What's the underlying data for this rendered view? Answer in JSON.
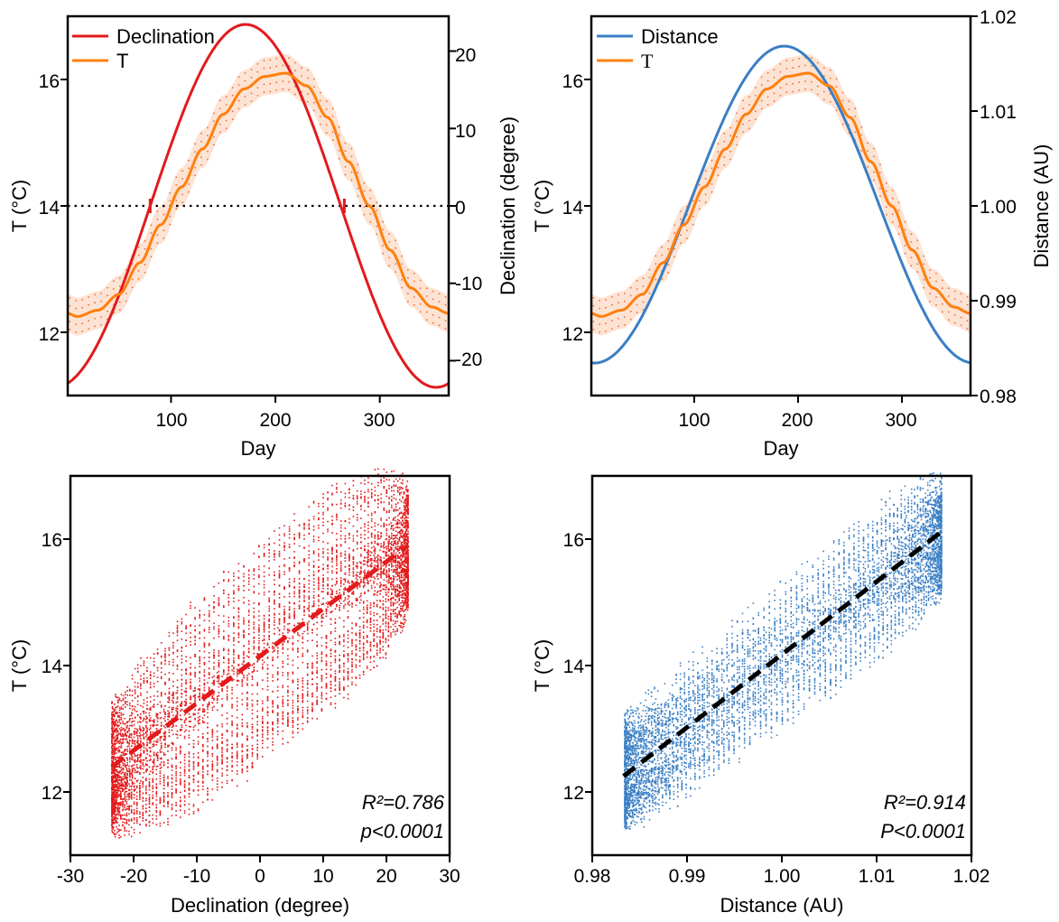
{
  "figure": {
    "panels": [
      {
        "id": "tl",
        "xlabel": "Day",
        "ylabel_left": "T (°C)",
        "ylabel_right": "Declination (degree)",
        "x_ticks": [
          "100",
          "200",
          "300"
        ],
        "y_ticks_left": [
          "12",
          "14",
          "16"
        ],
        "y_ticks_right": [
          "20",
          "10",
          "0",
          "-10",
          "-20"
        ],
        "legend": [
          "Declination",
          "T"
        ]
      },
      {
        "id": "tr",
        "xlabel": "Day",
        "ylabel_left": "T (°C)",
        "ylabel_right": "Distance (AU)",
        "x_ticks": [
          "100",
          "200",
          "300"
        ],
        "y_ticks_left": [
          "12",
          "14",
          "16"
        ],
        "y_ticks_right": [
          "1.02",
          "1.01",
          "1.00",
          "0.99",
          "0.98"
        ],
        "legend": [
          "Distance",
          "T"
        ]
      },
      {
        "id": "bl",
        "xlabel": "Declination (degree)",
        "ylabel_left": "T (°C)",
        "x_ticks": [
          "-30",
          "-20",
          "-10",
          "0",
          "10",
          "20",
          "30"
        ],
        "y_ticks_left": [
          "12",
          "14",
          "16"
        ],
        "annot_r2": "R²=0.786",
        "annot_p": "p<0.0001"
      },
      {
        "id": "br",
        "xlabel": "Distance (AU)",
        "ylabel_left": "T (°C)",
        "x_ticks": [
          "0.98",
          "0.99",
          "1.00",
          "1.01",
          "1.02"
        ],
        "y_ticks_left": [
          "12",
          "14",
          "16"
        ],
        "annot_r2": "R²=0.914",
        "annot_p": "P<0.0001"
      }
    ]
  },
  "colors": {
    "declination": "#e31a1c",
    "temperature": "#ff7f0e",
    "distance": "#3a7fc4",
    "fit_distance": "#000000"
  },
  "chart_data": [
    {
      "type": "line",
      "xlabel": "Day",
      "ylabel": "T (°C)",
      "y2label": "Declination (degree)",
      "xlim": [
        1,
        366
      ],
      "ylim": [
        11,
        17
      ],
      "y2lim": [
        -24.5,
        24.5
      ],
      "series": [
        {
          "name": "Declination",
          "axis": "right",
          "x": [
            1,
            80,
            172,
            266,
            356,
            366
          ],
          "y": [
            -23.0,
            0,
            23.44,
            0,
            -23.44,
            -23.0
          ]
        },
        {
          "name": "T",
          "axis": "left",
          "band": "±0.3",
          "x": [
            1,
            10,
            30,
            50,
            70,
            90,
            110,
            130,
            150,
            170,
            190,
            210,
            230,
            250,
            270,
            290,
            310,
            330,
            350,
            366
          ],
          "y": [
            12.3,
            12.25,
            12.35,
            12.6,
            13.1,
            13.7,
            14.3,
            14.9,
            15.45,
            15.85,
            16.05,
            16.1,
            15.9,
            15.4,
            14.7,
            14.0,
            13.3,
            12.7,
            12.4,
            12.3
          ]
        }
      ],
      "reference_line": {
        "axis": "right",
        "y": 0,
        "style": "dotted"
      }
    },
    {
      "type": "line",
      "xlabel": "Day",
      "ylabel": "T (°C)",
      "y2label": "Distance (AU)",
      "xlim": [
        1,
        366
      ],
      "ylim": [
        11,
        17
      ],
      "y2lim": [
        0.98,
        1.02
      ],
      "series": [
        {
          "name": "Distance",
          "axis": "right",
          "x": [
            1,
            50,
            100,
            150,
            186,
            220,
            270,
            320,
            366
          ],
          "y": [
            0.9833,
            0.9895,
            1.0025,
            1.0145,
            1.0167,
            1.0135,
            0.9995,
            0.9875,
            0.9833
          ]
        },
        {
          "name": "T",
          "axis": "left",
          "band": "±0.3",
          "x": [
            1,
            10,
            30,
            50,
            70,
            90,
            110,
            130,
            150,
            170,
            190,
            210,
            230,
            250,
            270,
            290,
            310,
            330,
            350,
            366
          ],
          "y": [
            12.3,
            12.25,
            12.35,
            12.6,
            13.1,
            13.7,
            14.3,
            14.9,
            15.45,
            15.85,
            16.05,
            16.1,
            15.9,
            15.4,
            14.7,
            14.0,
            13.3,
            12.7,
            12.4,
            12.3
          ]
        }
      ]
    },
    {
      "type": "scatter",
      "xlabel": "Declination (degree)",
      "ylabel": "T (°C)",
      "xlim": [
        -30,
        30
      ],
      "ylim": [
        11,
        17
      ],
      "point_cloud": {
        "x_range": [
          -23.44,
          23.44
        ],
        "y_range": [
          11.6,
          16.8
        ]
      },
      "fit_line": {
        "x": [
          -23.44,
          23.44
        ],
        "y": [
          12.4,
          15.9
        ],
        "style": "dashed"
      },
      "r2": 0.786,
      "p": "<0.0001"
    },
    {
      "type": "scatter",
      "xlabel": "Distance (AU)",
      "ylabel": "T (°C)",
      "xlim": [
        0.98,
        1.02
      ],
      "ylim": [
        11,
        17
      ],
      "point_cloud": {
        "x_range": [
          0.9833,
          1.0167
        ],
        "y_range": [
          11.6,
          16.8
        ]
      },
      "fit_line": {
        "x": [
          0.9833,
          1.0167
        ],
        "y": [
          12.25,
          16.1
        ],
        "style": "dashed"
      },
      "r2": 0.914,
      "p": "<0.0001"
    }
  ]
}
